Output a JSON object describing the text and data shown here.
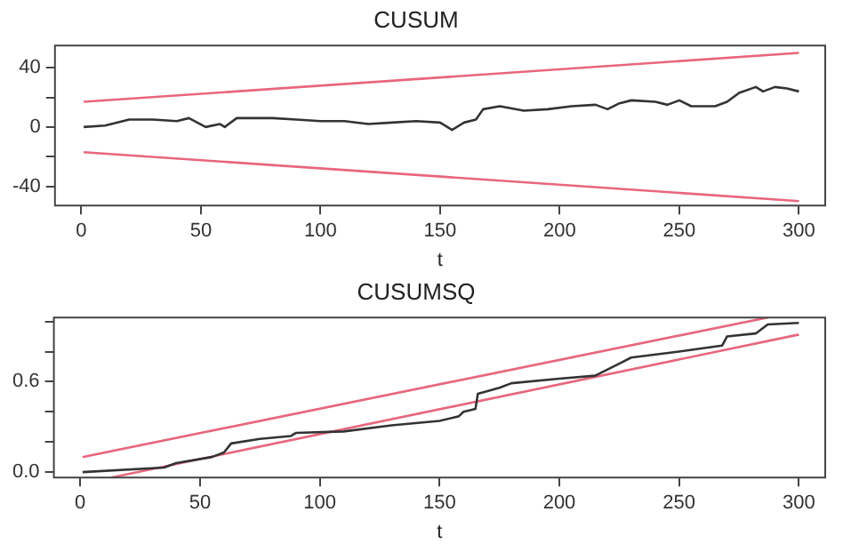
{
  "chart_data": [
    {
      "type": "line",
      "title": "CUSUM",
      "xlabel": "t",
      "xlim": [
        -11,
        311
      ],
      "xticks": [
        0,
        50,
        100,
        150,
        200,
        250,
        300
      ],
      "ylim": [
        -53,
        55
      ],
      "yticks": [
        -40,
        {
          "value": -20,
          "label": null
        },
        0,
        {
          "value": 20,
          "label": null
        },
        40
      ],
      "grid": false,
      "marker": "none",
      "line_style": "solid",
      "series": [
        {
          "color": "#333333",
          "x": [
            1,
            10,
            20,
            30,
            40,
            45,
            52,
            58,
            60,
            65,
            80,
            90,
            100,
            110,
            120,
            130,
            140,
            150,
            155,
            160,
            165,
            168,
            175,
            185,
            195,
            205,
            215,
            220,
            225,
            230,
            240,
            245,
            250,
            255,
            265,
            270,
            275,
            282,
            285,
            290,
            295,
            300
          ],
          "values": [
            0,
            1,
            5,
            5,
            4,
            6,
            0,
            2,
            0,
            6,
            6,
            5,
            4,
            4,
            2,
            3,
            4,
            3,
            -2,
            3,
            5,
            12,
            14,
            11,
            12,
            14,
            15,
            12,
            16,
            18,
            17,
            15,
            18,
            14,
            14,
            17,
            23,
            27,
            24,
            27,
            26,
            24
          ]
        },
        {
          "color": "#e8667d",
          "x": [
            1,
            300
          ],
          "values": [
            17,
            50
          ]
        },
        {
          "color": "#e8667d",
          "x": [
            1,
            300
          ],
          "values": [
            -17,
            -50
          ]
        }
      ]
    },
    {
      "type": "line",
      "title": "CUSUMSQ",
      "xlabel": "t",
      "xlim": [
        -11,
        311
      ],
      "xticks": [
        0,
        50,
        100,
        150,
        200,
        250,
        300
      ],
      "ylim": [
        -0.036,
        1.026
      ],
      "yticks": [
        {
          "value": 0,
          "label": "0.0"
        },
        {
          "value": 0.2,
          "label": null
        },
        {
          "value": 0.4,
          "label": null
        },
        {
          "value": 0.6,
          "label": "0.6"
        },
        {
          "value": 0.8,
          "label": null
        },
        {
          "value": 1.0,
          "label": null
        }
      ],
      "grid": false,
      "marker": "none",
      "line_style": "solid",
      "series": [
        {
          "color": "#333333",
          "x": [
            1,
            35,
            40,
            55,
            60,
            63,
            75,
            88,
            90,
            110,
            130,
            150,
            158,
            160,
            165,
            166,
            175,
            180,
            200,
            215,
            220,
            225,
            230,
            250,
            268,
            270,
            282,
            287,
            300
          ],
          "values": [
            0,
            0.03,
            0.06,
            0.1,
            0.13,
            0.19,
            0.22,
            0.24,
            0.26,
            0.27,
            0.31,
            0.34,
            0.37,
            0.4,
            0.42,
            0.52,
            0.56,
            0.59,
            0.62,
            0.64,
            0.68,
            0.72,
            0.76,
            0.8,
            0.84,
            0.9,
            0.92,
            0.98,
            0.99
          ]
        },
        {
          "color": "#e8667d",
          "x": [
            1,
            287
          ],
          "values": [
            0.1,
            1.026
          ]
        },
        {
          "color": "#e8667d",
          "x": [
            13,
            300
          ],
          "values": [
            -0.036,
            0.913
          ]
        }
      ]
    }
  ]
}
